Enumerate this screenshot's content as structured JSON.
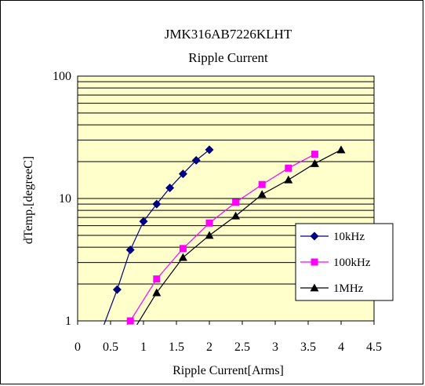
{
  "chart_data": {
    "type": "line",
    "title": "JMK316AB7226KLHT",
    "subtitle": "Ripple Current",
    "xlabel": "Ripple Current[Arms]",
    "ylabel": "dTemp.[degreeC]",
    "xlim": [
      0,
      4.5
    ],
    "ylim": [
      1,
      100
    ],
    "yscale": "log",
    "grid": true,
    "legend_position": "lower-right",
    "plot_background": "#ffffcc",
    "x_ticks": [
      "0",
      "0.5",
      "1",
      "1.5",
      "2",
      "2.5",
      "3",
      "3.5",
      "4",
      "4.5"
    ],
    "y_ticks": [
      "1",
      "10",
      "100"
    ],
    "series": [
      {
        "name": "10kHz",
        "color": "#000080",
        "marker": "diamond",
        "x": [
          0.4,
          0.6,
          0.8,
          1.0,
          1.2,
          1.4,
          1.6,
          1.8,
          2.0
        ],
        "y": [
          0.93,
          1.8,
          3.8,
          6.5,
          9.0,
          12.2,
          15.9,
          20.5,
          25.0
        ]
      },
      {
        "name": "100kHz",
        "color": "#ff00ff",
        "marker": "square",
        "x": [
          0.75,
          0.8,
          1.2,
          1.6,
          2.0,
          2.4,
          2.8,
          3.2,
          3.6
        ],
        "y": [
          0.93,
          1.0,
          2.2,
          3.9,
          6.3,
          9.3,
          13.0,
          17.7,
          23.0
        ]
      },
      {
        "name": "1MHz",
        "color": "#000000",
        "marker": "triangle",
        "x": [
          0.9,
          1.2,
          1.6,
          2.0,
          2.4,
          2.8,
          3.2,
          3.6,
          4.0
        ],
        "y": [
          0.93,
          1.7,
          3.3,
          5.0,
          7.2,
          10.8,
          14.2,
          19.3,
          25.0
        ]
      }
    ]
  }
}
